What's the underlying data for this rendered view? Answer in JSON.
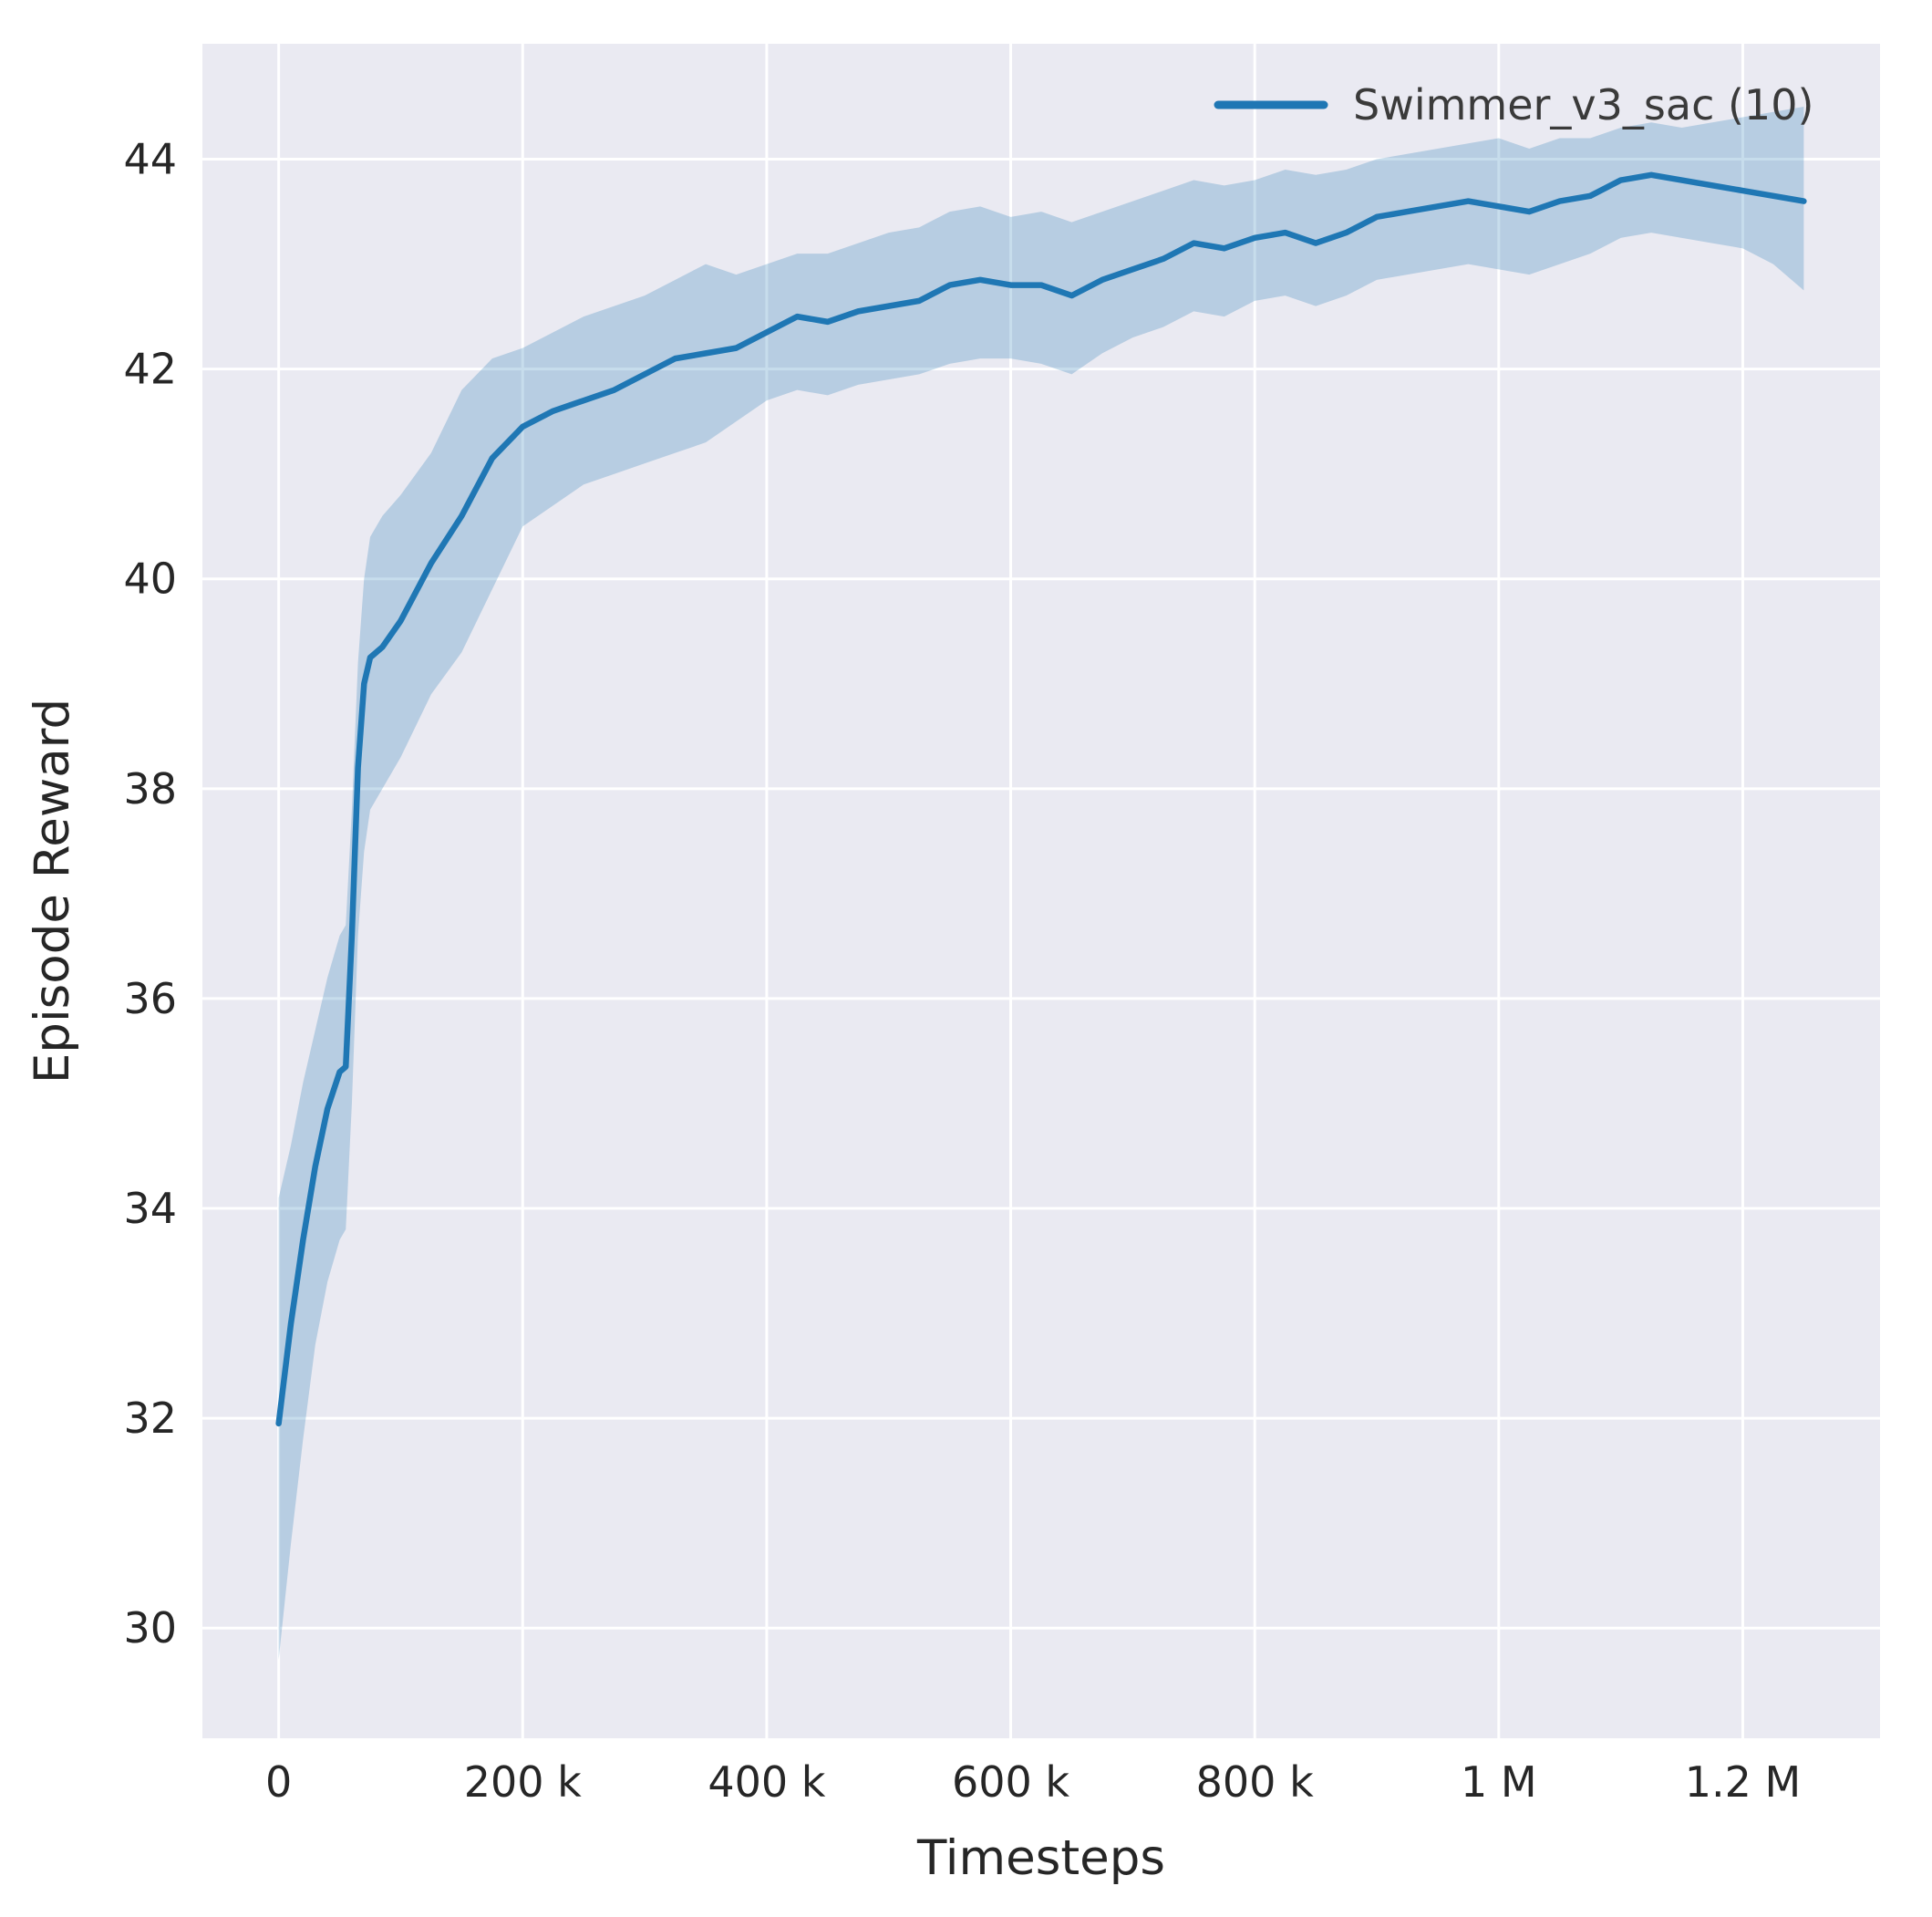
{
  "chart_data": {
    "type": "line",
    "title": "",
    "xlabel": "Timesteps",
    "ylabel": "Episode Reward",
    "grid": true,
    "legend_position": "upper right",
    "legend": [
      {
        "name": "Swimmer_v3_sac (10)",
        "color": "#1f77b4"
      }
    ],
    "xlim": [
      -62500,
      1312500
    ],
    "ylim": [
      28.95,
      45.1
    ],
    "xticks": {
      "values": [
        0,
        200000,
        400000,
        600000,
        800000,
        1000000,
        1200000
      ],
      "labels": [
        "0",
        "200 k",
        "400 k",
        "600 k",
        "800 k",
        "1 M",
        "1.2 M"
      ]
    },
    "yticks": {
      "values": [
        30,
        32,
        34,
        36,
        38,
        40,
        42,
        44
      ],
      "labels": [
        "30",
        "32",
        "34",
        "36",
        "38",
        "40",
        "42",
        "44"
      ]
    },
    "colors": {
      "axes_background": "#eaeaf2",
      "grid": "#ffffff",
      "line": "#1f77b4",
      "band": "#1f77b4",
      "band_opacity": 0.25,
      "text": "#262626"
    },
    "series": [
      {
        "name": "Swimmer_v3_sac (10)",
        "x": [
          0,
          10000,
          20000,
          30000,
          40000,
          50000,
          55000,
          60000,
          65000,
          70000,
          75000,
          85000,
          100000,
          125000,
          150000,
          175000,
          200000,
          225000,
          250000,
          275000,
          300000,
          325000,
          350000,
          375000,
          400000,
          425000,
          450000,
          475000,
          500000,
          525000,
          550000,
          575000,
          600000,
          625000,
          650000,
          675000,
          700000,
          725000,
          750000,
          775000,
          800000,
          825000,
          850000,
          875000,
          900000,
          925000,
          950000,
          975000,
          1000000,
          1025000,
          1050000,
          1075000,
          1100000,
          1125000,
          1150000,
          1175000,
          1200000,
          1225000,
          1250000
        ],
        "mean": [
          31.95,
          32.9,
          33.7,
          34.4,
          34.95,
          35.3,
          35.35,
          36.6,
          38.2,
          39.0,
          39.25,
          39.35,
          39.6,
          40.15,
          40.6,
          41.15,
          41.45,
          41.6,
          41.7,
          41.8,
          41.95,
          42.1,
          42.15,
          42.2,
          42.35,
          42.5,
          42.45,
          42.55,
          42.6,
          42.65,
          42.8,
          42.85,
          42.8,
          42.8,
          42.7,
          42.85,
          42.95,
          43.05,
          43.2,
          43.15,
          43.25,
          43.3,
          43.2,
          43.3,
          43.45,
          43.5,
          43.55,
          43.6,
          43.55,
          43.5,
          43.6,
          43.65,
          43.8,
          43.85,
          43.8,
          43.75,
          43.7,
          43.65,
          43.6
        ],
        "band_lower": [
          29.7,
          30.8,
          31.8,
          32.7,
          33.3,
          33.7,
          33.8,
          35.0,
          36.6,
          37.4,
          37.8,
          38.0,
          38.3,
          38.9,
          39.3,
          39.9,
          40.5,
          40.7,
          40.9,
          41.0,
          41.1,
          41.2,
          41.3,
          41.5,
          41.7,
          41.8,
          41.75,
          41.85,
          41.9,
          41.95,
          42.05,
          42.1,
          42.1,
          42.05,
          41.95,
          42.15,
          42.3,
          42.4,
          42.55,
          42.5,
          42.65,
          42.7,
          42.6,
          42.7,
          42.85,
          42.9,
          42.95,
          43.0,
          42.95,
          42.9,
          43.0,
          43.1,
          43.25,
          43.3,
          43.25,
          43.2,
          43.15,
          43.0,
          42.75
        ],
        "band_upper": [
          34.1,
          34.6,
          35.2,
          35.7,
          36.2,
          36.6,
          36.7,
          37.8,
          39.2,
          40.0,
          40.4,
          40.6,
          40.8,
          41.2,
          41.8,
          42.1,
          42.2,
          42.35,
          42.5,
          42.6,
          42.7,
          42.85,
          43.0,
          42.9,
          43.0,
          43.1,
          43.1,
          43.2,
          43.3,
          43.35,
          43.5,
          43.55,
          43.45,
          43.5,
          43.4,
          43.5,
          43.6,
          43.7,
          43.8,
          43.75,
          43.8,
          43.9,
          43.85,
          43.9,
          44.0,
          44.05,
          44.1,
          44.15,
          44.2,
          44.1,
          44.2,
          44.2,
          44.3,
          44.35,
          44.3,
          44.35,
          44.4,
          44.45,
          44.5
        ]
      }
    ]
  }
}
